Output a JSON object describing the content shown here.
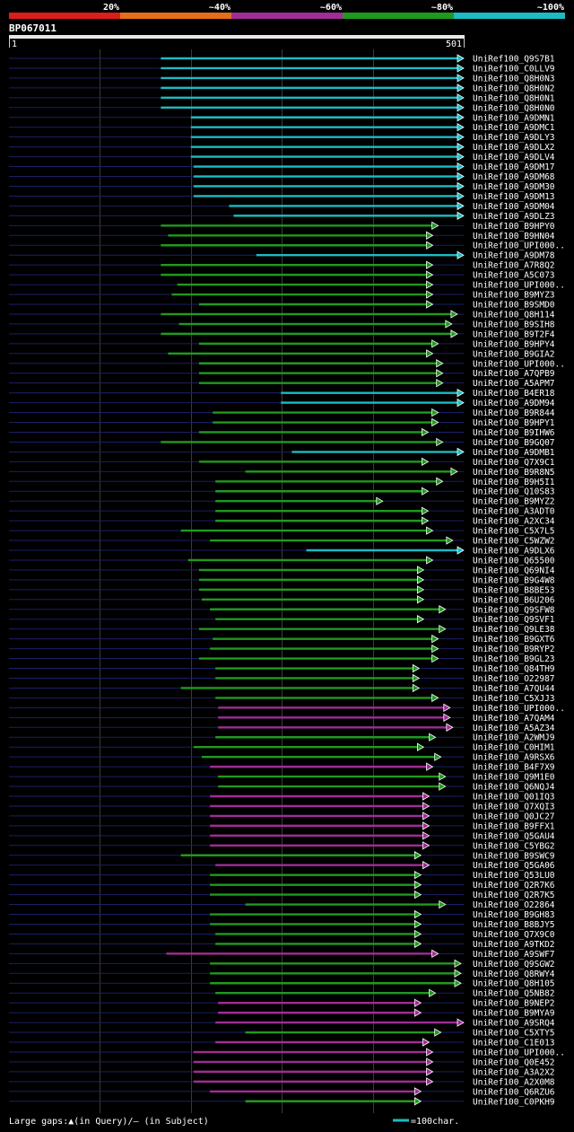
{
  "chart_data": {
    "type": "alignment",
    "title": "BP067011",
    "axis_start_label": "1",
    "axis_end_label": "501",
    "query_length": 501,
    "identity_legend": [
      {
        "label": "20%",
        "color": "#dd1c1c"
      },
      {
        "label": "~40%",
        "color": "#e66e1b"
      },
      {
        "label": "~60%",
        "color": "#a12c96"
      },
      {
        "label": "~80%",
        "color": "#1f9a1f"
      },
      {
        "label": "~100%",
        "color": "#1bbcc3"
      }
    ],
    "hits": [
      {
        "name": "UniRef100_Q9S7B1",
        "start": 168,
        "end": 501,
        "color": "#1bbcc3"
      },
      {
        "name": "UniRef100_C0LLV9",
        "start": 168,
        "end": 501,
        "color": "#1bbcc3"
      },
      {
        "name": "UniRef100_Q8H0N3",
        "start": 168,
        "end": 501,
        "color": "#1bbcc3"
      },
      {
        "name": "UniRef100_Q8H0N2",
        "start": 168,
        "end": 501,
        "color": "#1bbcc3"
      },
      {
        "name": "UniRef100_Q8H0N1",
        "start": 168,
        "end": 501,
        "color": "#1bbcc3"
      },
      {
        "name": "UniRef100_Q8H0N0",
        "start": 168,
        "end": 501,
        "color": "#1bbcc3"
      },
      {
        "name": "UniRef100_A9DMN1",
        "start": 201,
        "end": 501,
        "color": "#1bbcc3"
      },
      {
        "name": "UniRef100_A9DMC1",
        "start": 201,
        "end": 501,
        "color": "#1bbcc3"
      },
      {
        "name": "UniRef100_A9DLY3",
        "start": 201,
        "end": 501,
        "color": "#1bbcc3"
      },
      {
        "name": "UniRef100_A9DLX2",
        "start": 201,
        "end": 501,
        "color": "#1bbcc3"
      },
      {
        "name": "UniRef100_A9DLV4",
        "start": 201,
        "end": 501,
        "color": "#1bbcc3"
      },
      {
        "name": "UniRef100_A9DM17",
        "start": 204,
        "end": 501,
        "color": "#1bbcc3"
      },
      {
        "name": "UniRef100_A9DM68",
        "start": 204,
        "end": 501,
        "color": "#1bbcc3"
      },
      {
        "name": "UniRef100_A9DM30",
        "start": 204,
        "end": 501,
        "color": "#1bbcc3"
      },
      {
        "name": "UniRef100_A9DM13",
        "start": 204,
        "end": 501,
        "color": "#1bbcc3"
      },
      {
        "name": "UniRef100_A9DM04",
        "start": 243,
        "end": 501,
        "color": "#1bbcc3"
      },
      {
        "name": "UniRef100_A9DLZ3",
        "start": 248,
        "end": 501,
        "color": "#1bbcc3"
      },
      {
        "name": "UniRef100_B9HPY0",
        "start": 168,
        "end": 473,
        "color": "#1f9a1f"
      },
      {
        "name": "UniRef100_B9HN04",
        "start": 176,
        "end": 467,
        "color": "#1f9a1f"
      },
      {
        "name": "UniRef100_UPI000..",
        "start": 168,
        "end": 467,
        "color": "#1f9a1f"
      },
      {
        "name": "UniRef100_A9DM78",
        "start": 273,
        "end": 501,
        "color": "#1bbcc3"
      },
      {
        "name": "UniRef100_A7R8Q2",
        "start": 168,
        "end": 467,
        "color": "#1f9a1f"
      },
      {
        "name": "UniRef100_A5C073",
        "start": 168,
        "end": 467,
        "color": "#1f9a1f"
      },
      {
        "name": "UniRef100_UPI000..",
        "start": 186,
        "end": 467,
        "color": "#1f9a1f"
      },
      {
        "name": "UniRef100_B9MYZ3",
        "start": 180,
        "end": 467,
        "color": "#1f9a1f"
      },
      {
        "name": "UniRef100_B9SMD0",
        "start": 210,
        "end": 467,
        "color": "#1f9a1f"
      },
      {
        "name": "UniRef100_Q8H114",
        "start": 168,
        "end": 494,
        "color": "#1f9a1f"
      },
      {
        "name": "UniRef100_B9SIH8",
        "start": 188,
        "end": 488,
        "color": "#1f9a1f"
      },
      {
        "name": "UniRef100_B9T2F4",
        "start": 168,
        "end": 494,
        "color": "#1f9a1f"
      },
      {
        "name": "UniRef100_B9HPY4",
        "start": 210,
        "end": 473,
        "color": "#1f9a1f"
      },
      {
        "name": "UniRef100_B9GIA2",
        "start": 176,
        "end": 467,
        "color": "#1f9a1f"
      },
      {
        "name": "UniRef100_UPI000..",
        "start": 210,
        "end": 478,
        "color": "#1f9a1f"
      },
      {
        "name": "UniRef100_A7QPB9",
        "start": 210,
        "end": 478,
        "color": "#1f9a1f"
      },
      {
        "name": "UniRef100_A5APM7",
        "start": 210,
        "end": 478,
        "color": "#1f9a1f"
      },
      {
        "name": "UniRef100_B4ER18",
        "start": 300,
        "end": 501,
        "color": "#1bbcc3"
      },
      {
        "name": "UniRef100_A9DM94",
        "start": 300,
        "end": 501,
        "color": "#1bbcc3"
      },
      {
        "name": "UniRef100_B9R844",
        "start": 225,
        "end": 473,
        "color": "#1f9a1f"
      },
      {
        "name": "UniRef100_B9HPY1",
        "start": 225,
        "end": 473,
        "color": "#1f9a1f"
      },
      {
        "name": "UniRef100_B9IHW6",
        "start": 210,
        "end": 462,
        "color": "#1f9a1f"
      },
      {
        "name": "UniRef100_B9GQ07",
        "start": 168,
        "end": 478,
        "color": "#1f9a1f"
      },
      {
        "name": "UniRef100_A9DMB1",
        "start": 312,
        "end": 501,
        "color": "#1bbcc3"
      },
      {
        "name": "UniRef100_Q7X9C1",
        "start": 210,
        "end": 462,
        "color": "#1f9a1f"
      },
      {
        "name": "UniRef100_B9R8N5",
        "start": 261,
        "end": 494,
        "color": "#1f9a1f"
      },
      {
        "name": "UniRef100_B9H5I1",
        "start": 228,
        "end": 478,
        "color": "#1f9a1f"
      },
      {
        "name": "UniRef100_Q10S83",
        "start": 228,
        "end": 462,
        "color": "#1f9a1f"
      },
      {
        "name": "UniRef100_B9MYZ2",
        "start": 228,
        "end": 412,
        "color": "#1f9a1f"
      },
      {
        "name": "UniRef100_A3ADT0",
        "start": 228,
        "end": 462,
        "color": "#1f9a1f"
      },
      {
        "name": "UniRef100_A2XC34",
        "start": 228,
        "end": 462,
        "color": "#1f9a1f"
      },
      {
        "name": "UniRef100_C5X7L5",
        "start": 190,
        "end": 467,
        "color": "#1f9a1f"
      },
      {
        "name": "UniRef100_C5WZW2",
        "start": 222,
        "end": 489,
        "color": "#1f9a1f"
      },
      {
        "name": "UniRef100_A9DLX6",
        "start": 328,
        "end": 501,
        "color": "#1bbcc3"
      },
      {
        "name": "UniRef100_Q65500",
        "start": 198,
        "end": 467,
        "color": "#1f9a1f"
      },
      {
        "name": "UniRef100_Q69NI4",
        "start": 210,
        "end": 457,
        "color": "#1f9a1f"
      },
      {
        "name": "UniRef100_B9G4W8",
        "start": 210,
        "end": 457,
        "color": "#1f9a1f"
      },
      {
        "name": "UniRef100_B8BE53",
        "start": 210,
        "end": 457,
        "color": "#1f9a1f"
      },
      {
        "name": "UniRef100_B6U206",
        "start": 213,
        "end": 457,
        "color": "#1f9a1f"
      },
      {
        "name": "UniRef100_Q9SFW8",
        "start": 222,
        "end": 481,
        "color": "#1f9a1f"
      },
      {
        "name": "UniRef100_Q9SVF1",
        "start": 228,
        "end": 457,
        "color": "#1f9a1f"
      },
      {
        "name": "UniRef100_Q9LE38",
        "start": 210,
        "end": 481,
        "color": "#1f9a1f"
      },
      {
        "name": "UniRef100_B9GXT6",
        "start": 225,
        "end": 473,
        "color": "#1f9a1f"
      },
      {
        "name": "UniRef100_B9RYP2",
        "start": 222,
        "end": 473,
        "color": "#1f9a1f"
      },
      {
        "name": "UniRef100_B9GL23",
        "start": 210,
        "end": 473,
        "color": "#1f9a1f"
      },
      {
        "name": "UniRef100_Q84TH9",
        "start": 228,
        "end": 452,
        "color": "#1f9a1f"
      },
      {
        "name": "UniRef100_O22987",
        "start": 228,
        "end": 452,
        "color": "#1f9a1f"
      },
      {
        "name": "UniRef100_A7QU44",
        "start": 190,
        "end": 452,
        "color": "#1f9a1f"
      },
      {
        "name": "UniRef100_C5XJJ3",
        "start": 228,
        "end": 473,
        "color": "#1f9a1f"
      },
      {
        "name": "UniRef100_UPI000..",
        "start": 231,
        "end": 486,
        "color": "#a12c96"
      },
      {
        "name": "UniRef100_A7QAM4",
        "start": 231,
        "end": 486,
        "color": "#a12c96"
      },
      {
        "name": "UniRef100_A5AZ34",
        "start": 231,
        "end": 489,
        "color": "#a12c96"
      },
      {
        "name": "UniRef100_A2WMJ9",
        "start": 228,
        "end": 470,
        "color": "#1f9a1f"
      },
      {
        "name": "UniRef100_C0HIM1",
        "start": 204,
        "end": 457,
        "color": "#1f9a1f"
      },
      {
        "name": "UniRef100_A9RSX6",
        "start": 213,
        "end": 476,
        "color": "#1f9a1f"
      },
      {
        "name": "UniRef100_B4F7X9",
        "start": 222,
        "end": 467,
        "color": "#a12c96"
      },
      {
        "name": "UniRef100_Q9M1E0",
        "start": 231,
        "end": 481,
        "color": "#1f9a1f"
      },
      {
        "name": "UniRef100_Q6NQJ4",
        "start": 231,
        "end": 481,
        "color": "#1f9a1f"
      },
      {
        "name": "UniRef100_Q01IQ3",
        "start": 222,
        "end": 463,
        "color": "#a12c96"
      },
      {
        "name": "UniRef100_Q7XQI3",
        "start": 222,
        "end": 463,
        "color": "#a12c96"
      },
      {
        "name": "UniRef100_Q0JC27",
        "start": 222,
        "end": 463,
        "color": "#a12c96"
      },
      {
        "name": "UniRef100_B9FFX1",
        "start": 222,
        "end": 463,
        "color": "#a12c96"
      },
      {
        "name": "UniRef100_Q5GAU4",
        "start": 222,
        "end": 463,
        "color": "#a12c96"
      },
      {
        "name": "UniRef100_C5YBG2",
        "start": 222,
        "end": 463,
        "color": "#a12c96"
      },
      {
        "name": "UniRef100_B9SWC9",
        "start": 190,
        "end": 454,
        "color": "#1f9a1f"
      },
      {
        "name": "UniRef100_Q5GA06",
        "start": 228,
        "end": 463,
        "color": "#a12c96"
      },
      {
        "name": "UniRef100_Q53LU0",
        "start": 222,
        "end": 454,
        "color": "#1f9a1f"
      },
      {
        "name": "UniRef100_Q2R7K6",
        "start": 222,
        "end": 454,
        "color": "#1f9a1f"
      },
      {
        "name": "UniRef100_Q2R7K5",
        "start": 222,
        "end": 454,
        "color": "#1f9a1f"
      },
      {
        "name": "UniRef100_O22864",
        "start": 261,
        "end": 481,
        "color": "#1f9a1f"
      },
      {
        "name": "UniRef100_B9GH83",
        "start": 222,
        "end": 454,
        "color": "#1f9a1f"
      },
      {
        "name": "UniRef100_B8BJY5",
        "start": 222,
        "end": 454,
        "color": "#1f9a1f"
      },
      {
        "name": "UniRef100_Q7X9C0",
        "start": 228,
        "end": 454,
        "color": "#1f9a1f"
      },
      {
        "name": "UniRef100_A9TKD2",
        "start": 228,
        "end": 454,
        "color": "#1f9a1f"
      },
      {
        "name": "UniRef100_A9SWF7",
        "start": 174,
        "end": 473,
        "color": "#a12c96"
      },
      {
        "name": "UniRef100_Q9SGW2",
        "start": 222,
        "end": 498,
        "color": "#1f9a1f"
      },
      {
        "name": "UniRef100_Q8RWY4",
        "start": 222,
        "end": 498,
        "color": "#1f9a1f"
      },
      {
        "name": "UniRef100_Q8H105",
        "start": 222,
        "end": 498,
        "color": "#1f9a1f"
      },
      {
        "name": "UniRef100_Q5NB82",
        "start": 228,
        "end": 470,
        "color": "#1f9a1f"
      },
      {
        "name": "UniRef100_B9NEP2",
        "start": 231,
        "end": 454,
        "color": "#a12c96"
      },
      {
        "name": "UniRef100_B9MYA9",
        "start": 231,
        "end": 454,
        "color": "#a12c96"
      },
      {
        "name": "UniRef100_A9SRQ4",
        "start": 228,
        "end": 501,
        "color": "#a12c96"
      },
      {
        "name": "UniRef100_C5XTY5",
        "start": 261,
        "end": 476,
        "color": "#1f9a1f"
      },
      {
        "name": "UniRef100_C1E013",
        "start": 228,
        "end": 463,
        "color": "#a12c96"
      },
      {
        "name": "UniRef100_UPI000..",
        "start": 204,
        "end": 467,
        "color": "#a12c96"
      },
      {
        "name": "UniRef100_Q0E452",
        "start": 204,
        "end": 467,
        "color": "#a12c96"
      },
      {
        "name": "UniRef100_A3A2X2",
        "start": 204,
        "end": 467,
        "color": "#a12c96"
      },
      {
        "name": "UniRef100_A2X0M8",
        "start": 204,
        "end": 467,
        "color": "#a12c96"
      },
      {
        "name": "UniRef100_Q6RZU6",
        "start": 222,
        "end": 454,
        "color": "#a12c96"
      },
      {
        "name": "UniRef100_C0PKH9",
        "start": 261,
        "end": 454,
        "color": "#1f9a1f"
      }
    ]
  },
  "footer": {
    "gaps_legend": "Large gaps:▲(in Query)/— (in Subject)",
    "scale_legend": "=100char."
  }
}
